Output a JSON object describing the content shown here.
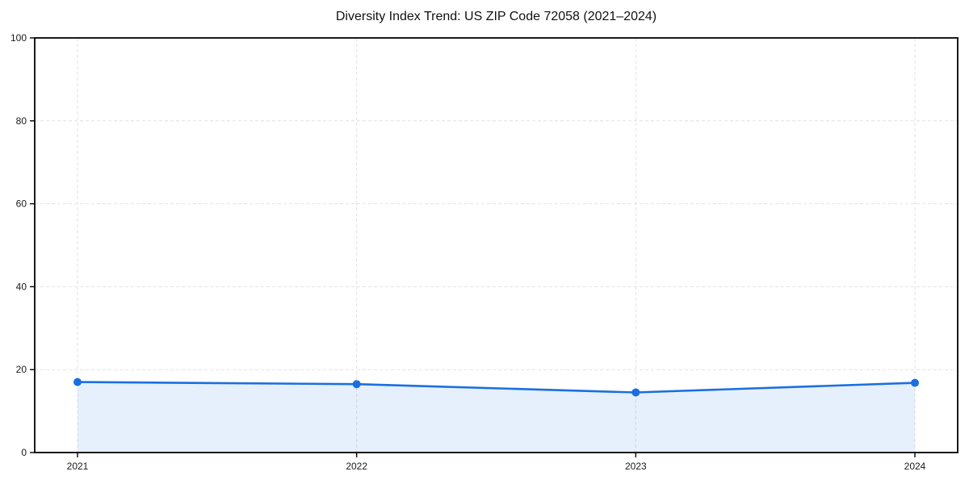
{
  "chart_data": {
    "type": "area",
    "title": "Diversity Index Trend: US ZIP Code 72058 (2021–2024)",
    "x": [
      2021,
      2022,
      2023,
      2024
    ],
    "series": [
      {
        "name": "Diversity Index",
        "values": [
          17.0,
          16.5,
          14.5,
          16.8
        ]
      }
    ],
    "xlabel": "",
    "ylabel": "",
    "ylim": [
      0,
      100
    ],
    "yticks": [
      0,
      20,
      40,
      60,
      80,
      100
    ],
    "grid": true,
    "grid_style": "dashed",
    "legend_position": "none",
    "colors": {
      "line": "#1a6fe0",
      "marker": "#1a6fe0",
      "fill": "rgba(26,111,224,0.11)",
      "grid": "#e2e2e2",
      "spine": "#000000",
      "tick_label": "#1a1a1a"
    }
  }
}
